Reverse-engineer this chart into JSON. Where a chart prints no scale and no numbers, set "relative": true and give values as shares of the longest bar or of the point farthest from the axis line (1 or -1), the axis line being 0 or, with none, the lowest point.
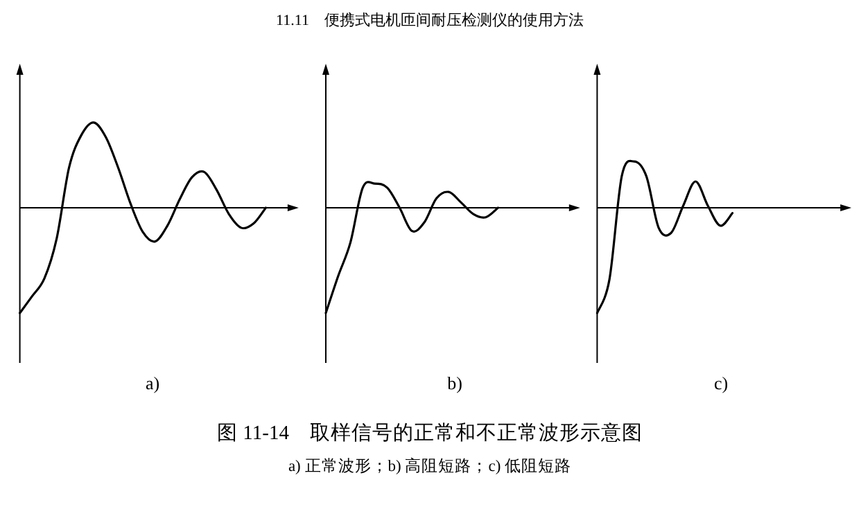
{
  "chart_data": [
    {
      "type": "line",
      "xlabel": "a)",
      "relative": true,
      "color": "#000000",
      "categories": [
        null,
        null,
        null,
        null,
        null,
        null,
        null,
        null,
        null,
        null,
        null,
        null,
        null,
        null,
        null,
        null,
        null,
        null,
        null,
        null,
        null,
        null,
        null
      ],
      "values": [
        -1,
        -0.84,
        -0.67,
        -0.29,
        0.38,
        0.69,
        0.81,
        0.67,
        0.38,
        0.04,
        -0.23,
        -0.32,
        -0.17,
        0.08,
        0.29,
        0.34,
        0.17,
        -0.06,
        -0.19,
        -0.15,
        0,
        null,
        null
      ]
    },
    {
      "type": "line",
      "xlabel": "b)",
      "relative": true,
      "color": "#000000",
      "categories": [
        null,
        null,
        null,
        null,
        null,
        null,
        null,
        null,
        null,
        null,
        null,
        null,
        null,
        null,
        null,
        null,
        null,
        null,
        null,
        null,
        null
      ],
      "values": [
        -1,
        -0.65,
        -0.33,
        0.19,
        0.23,
        0.19,
        0,
        -0.22,
        -0.14,
        0.09,
        0.15,
        0.05,
        -0.06,
        -0.09,
        0,
        null,
        null,
        null,
        null,
        null,
        null
      ]
    },
    {
      "type": "line",
      "xlabel": "c)",
      "relative": true,
      "color": "#000000",
      "categories": [
        null,
        null,
        null,
        null,
        null,
        null,
        null,
        null,
        null,
        null,
        null,
        null,
        null,
        null,
        null,
        null,
        null,
        null,
        null,
        null,
        null
      ],
      "values": [
        -1,
        -0.68,
        0.3,
        0.44,
        0.3,
        -0.19,
        -0.24,
        0.02,
        0.25,
        0.02,
        -0.17,
        -0.05,
        null,
        null,
        null,
        null,
        null,
        null,
        null,
        null,
        null
      ]
    },
    {
      "type": "other",
      "title": "图 11-14　取样信号的正常和不正常波形示意图",
      "subtitle": "a) 正常波形；b) 高阻短路；c) 低阻短路",
      "annotations": [
        "11.11　便携式电机匝间耐压检测仪的使用方法"
      ]
    }
  ]
}
